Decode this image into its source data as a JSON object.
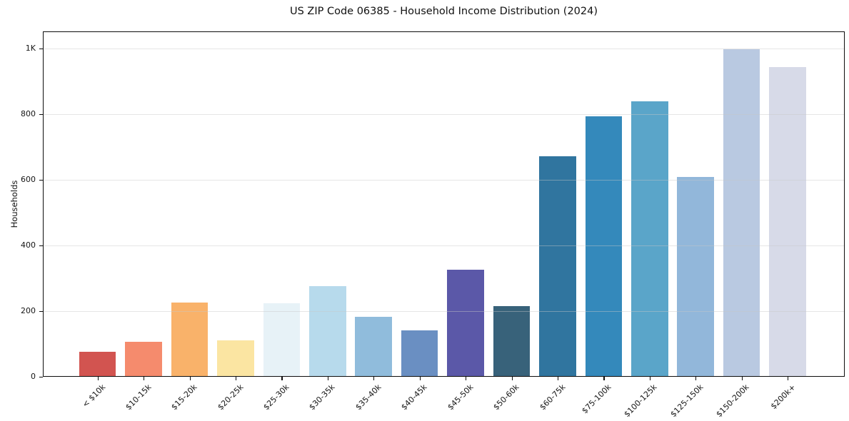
{
  "chart_data": {
    "type": "bar",
    "title": "US ZIP Code 06385 - Household Income Distribution (2024)",
    "xlabel": "",
    "ylabel": "Households",
    "categories": [
      "< $10k",
      "$10-15k",
      "$15-20k",
      "$20-25k",
      "$25-30k",
      "$30-35k",
      "$35-40k",
      "$40-45k",
      "$45-50k",
      "$50-60k",
      "$60-75k",
      "$75-100k",
      "$100-125k",
      "$125-150k",
      "$150-200k",
      "$200k+"
    ],
    "values": [
      76,
      107,
      227,
      111,
      224,
      276,
      183,
      141,
      327,
      215,
      672,
      794,
      840,
      609,
      998,
      944
    ],
    "bar_colors": [
      "#d25450",
      "#f58b6d",
      "#f9b26a",
      "#fbe5a2",
      "#e7f2f7",
      "#b7daec",
      "#90bcdc",
      "#6a8fc2",
      "#5b58a8",
      "#38627a",
      "#30759f",
      "#3489bb",
      "#5aa5c9",
      "#92b7da",
      "#b9c9e1",
      "#d7dae8"
    ],
    "yticks": {
      "values": [
        0,
        200,
        400,
        600,
        800,
        1000
      ],
      "labels": [
        "0",
        "200",
        "400",
        "600",
        "800",
        "1K"
      ]
    },
    "ylim": [
      0,
      1052
    ],
    "grid": "horizontal-light",
    "legend": "none",
    "plot_background": "#ffffff",
    "frame_color": "#0d0d0d"
  }
}
